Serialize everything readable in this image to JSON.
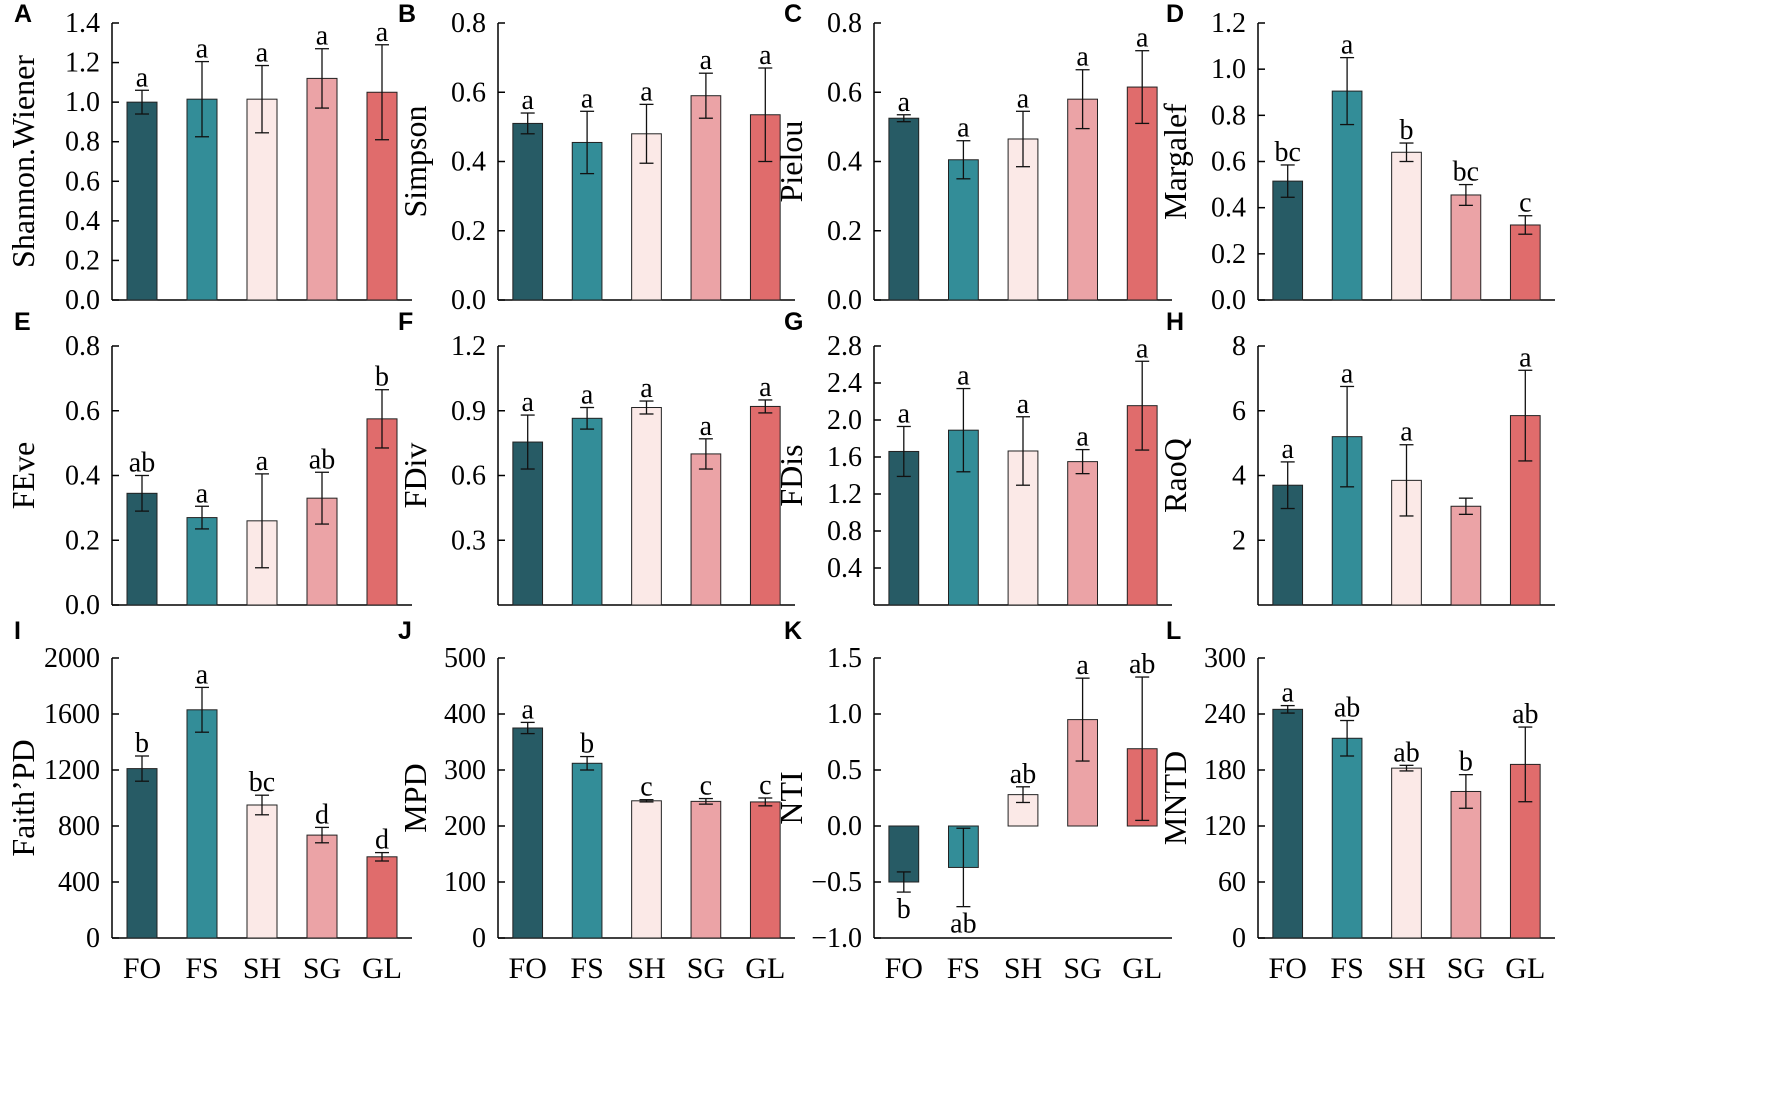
{
  "categories": [
    "FO",
    "FS",
    "SH",
    "SG",
    "GL"
  ],
  "colors": [
    "#275b65",
    "#338d98",
    "#fbe9e7",
    "#eba3a6",
    "#e06c6c"
  ],
  "chart_data": [
    {
      "type": "bar",
      "panel": "A",
      "ylabel": "Shannon.Wiener",
      "ylim": [
        0,
        1.4
      ],
      "ticks": [
        0.0,
        0.2,
        0.4,
        0.6,
        0.8,
        1.0,
        1.2,
        1.4
      ],
      "tick_labels": [
        "0.0",
        "0.2",
        "0.4",
        "0.6",
        "0.8",
        "1.0",
        "1.2",
        "1.4"
      ],
      "values": [
        1.0,
        1.015,
        1.015,
        1.12,
        1.05
      ],
      "errors": [
        0.06,
        0.19,
        0.17,
        0.15,
        0.24
      ],
      "letters": [
        "a",
        "a",
        "a",
        "a",
        "a"
      ]
    },
    {
      "type": "bar",
      "panel": "B",
      "ylabel": "Simpson",
      "ylim": [
        0,
        0.8
      ],
      "ticks": [
        0.0,
        0.2,
        0.4,
        0.6,
        0.8
      ],
      "tick_labels": [
        "0.0",
        "0.2",
        "0.4",
        "0.6",
        "0.8"
      ],
      "values": [
        0.51,
        0.455,
        0.48,
        0.59,
        0.535
      ],
      "errors": [
        0.03,
        0.09,
        0.085,
        0.065,
        0.135
      ],
      "letters": [
        "a",
        "a",
        "a",
        "a",
        "a"
      ]
    },
    {
      "type": "bar",
      "panel": "C",
      "ylabel": "Pielou",
      "ylim": [
        0,
        0.8
      ],
      "ticks": [
        0.0,
        0.2,
        0.4,
        0.6,
        0.8
      ],
      "tick_labels": [
        "0.0",
        "0.2",
        "0.4",
        "0.6",
        "0.8"
      ],
      "values": [
        0.525,
        0.405,
        0.465,
        0.58,
        0.615
      ],
      "errors": [
        0.01,
        0.055,
        0.08,
        0.085,
        0.105
      ],
      "letters": [
        "a",
        "a",
        "a",
        "a",
        "a"
      ]
    },
    {
      "type": "bar",
      "panel": "D",
      "ylabel": "Margalef",
      "ylim": [
        0,
        1.2
      ],
      "ticks": [
        0.0,
        0.2,
        0.4,
        0.6,
        0.8,
        1.0,
        1.2
      ],
      "tick_labels": [
        "0.0",
        "0.2",
        "0.4",
        "0.6",
        "0.8",
        "1.0",
        "1.2"
      ],
      "values": [
        0.515,
        0.905,
        0.64,
        0.455,
        0.325
      ],
      "errors": [
        0.07,
        0.145,
        0.04,
        0.045,
        0.04
      ],
      "letters": [
        "bc",
        "a",
        "b",
        "bc",
        "c"
      ]
    },
    {
      "type": "bar",
      "panel": "E",
      "ylabel": "FEve",
      "ylim": [
        0,
        0.8
      ],
      "ticks": [
        0.0,
        0.2,
        0.4,
        0.6,
        0.8
      ],
      "tick_labels": [
        "0.0",
        "0.2",
        "0.4",
        "0.6",
        "0.8"
      ],
      "values": [
        0.345,
        0.27,
        0.26,
        0.33,
        0.575
      ],
      "errors": [
        0.055,
        0.035,
        0.145,
        0.08,
        0.09
      ],
      "letters": [
        "ab",
        "a",
        "a",
        "ab",
        "b"
      ]
    },
    {
      "type": "bar",
      "panel": "F",
      "ylabel": "FDiv",
      "ylim": [
        0,
        1.2
      ],
      "ticks": [
        0.3,
        0.6,
        0.9,
        1.2
      ],
      "tick_labels": [
        "0.3",
        "0.6",
        "0.9",
        "1.2"
      ],
      "values": [
        0.755,
        0.865,
        0.915,
        0.7,
        0.92
      ],
      "errors": [
        0.125,
        0.05,
        0.03,
        0.07,
        0.03
      ],
      "letters": [
        "a",
        "a",
        "a",
        "a",
        "a"
      ]
    },
    {
      "type": "bar",
      "panel": "G",
      "ylabel": "FDis",
      "ylim": [
        0,
        2.8
      ],
      "ticks": [
        0.4,
        0.8,
        1.2,
        1.6,
        2.0,
        2.4,
        2.8
      ],
      "tick_labels": [
        "0.4",
        "0.8",
        "1.2",
        "1.6",
        "2.0",
        "2.4",
        "2.8"
      ],
      "values": [
        1.66,
        1.89,
        1.665,
        1.55,
        2.155
      ],
      "errors": [
        0.27,
        0.45,
        0.37,
        0.13,
        0.48
      ],
      "letters": [
        "a",
        "a",
        "a",
        "a",
        "a"
      ]
    },
    {
      "type": "bar",
      "panel": "H",
      "ylabel": "RaoQ",
      "ylim": [
        0,
        8
      ],
      "ticks": [
        2,
        4,
        6,
        8
      ],
      "tick_labels": [
        "2",
        "4",
        "6",
        "8"
      ],
      "values": [
        3.7,
        5.2,
        3.85,
        3.05,
        5.85
      ],
      "errors": [
        0.72,
        1.55,
        1.1,
        0.25,
        1.4
      ],
      "letters": [
        "a",
        "a",
        "a",
        "",
        "a"
      ]
    },
    {
      "type": "bar",
      "panel": "I",
      "ylabel": "Faith’PD",
      "ylim": [
        0,
        2000
      ],
      "ticks": [
        0,
        400,
        800,
        1200,
        1600,
        2000
      ],
      "tick_labels": [
        "0",
        "400",
        "800",
        "1200",
        "1600",
        "2000"
      ],
      "values": [
        1210,
        1630,
        950,
        735,
        580
      ],
      "errors": [
        90,
        160,
        70,
        55,
        30
      ],
      "letters": [
        "b",
        "a",
        "bc",
        "d",
        "d"
      ]
    },
    {
      "type": "bar",
      "panel": "J",
      "ylabel": "MPD",
      "ylim": [
        0,
        500
      ],
      "ticks": [
        0,
        100,
        200,
        300,
        400,
        500
      ],
      "tick_labels": [
        "0",
        "100",
        "200",
        "300",
        "400",
        "500"
      ],
      "values": [
        375,
        312,
        245,
        244,
        243
      ],
      "errors": [
        10,
        12,
        2,
        5,
        7
      ],
      "letters": [
        "a",
        "b",
        "c",
        "c",
        "c"
      ]
    },
    {
      "type": "bar",
      "panel": "K",
      "ylabel": "NTI",
      "ylim": [
        -1.0,
        1.5
      ],
      "ticks": [
        -1.0,
        -0.5,
        0.0,
        0.5,
        1.0,
        1.5
      ],
      "tick_labels": [
        "−1.0",
        "−0.5",
        "0.0",
        "0.5",
        "1.0",
        "1.5"
      ],
      "values": [
        -0.5,
        -0.37,
        0.28,
        0.95,
        0.69
      ],
      "errors": [
        0.09,
        0.35,
        0.07,
        0.37,
        0.64
      ],
      "letters": [
        "b",
        "ab",
        "ab",
        "a",
        "ab"
      ]
    },
    {
      "type": "bar",
      "panel": "L",
      "ylabel": "MNTD",
      "ylim": [
        0,
        300
      ],
      "ticks": [
        0,
        60,
        120,
        180,
        240,
        300
      ],
      "tick_labels": [
        "0",
        "60",
        "120",
        "180",
        "240",
        "300"
      ],
      "values": [
        245,
        214,
        182,
        157,
        186
      ],
      "errors": [
        4,
        19,
        3,
        18,
        40
      ],
      "letters": [
        "a",
        "ab",
        "ab",
        "b",
        "ab"
      ]
    }
  ]
}
